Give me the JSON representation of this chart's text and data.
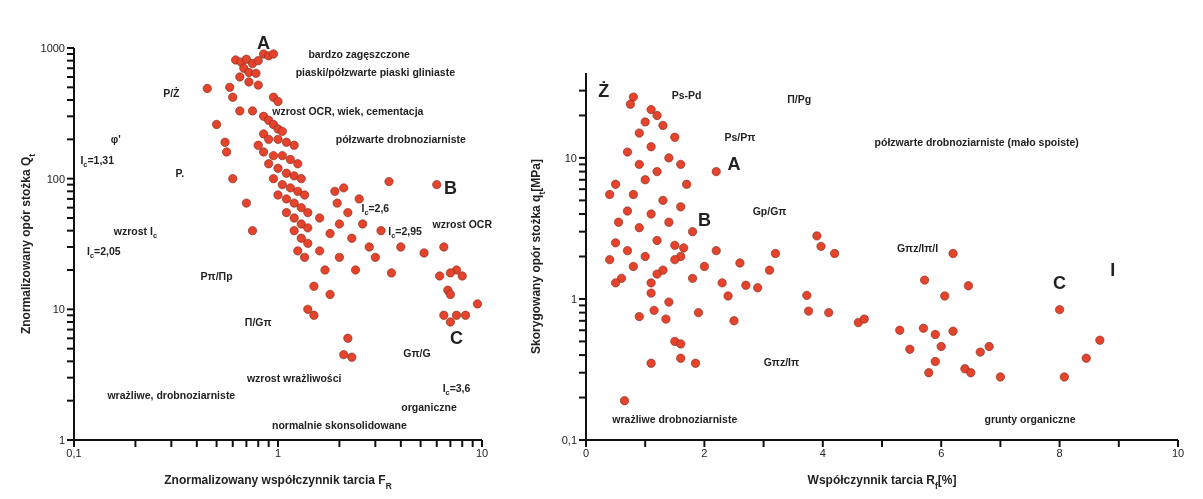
{
  "chart_data": [
    {
      "type": "scatter",
      "xlabel": "Znormalizowany współczynnik tarcia F$_{R}$",
      "ylabel": "Znormalizowany opór stożka Q$_{t}$",
      "log": "xy",
      "marker": "circle",
      "xlim": [
        0.1,
        10
      ],
      "ylim": [
        1,
        1000
      ],
      "xticks": [
        {
          "value": 0.1,
          "label": "0,1"
        },
        {
          "value": 0.2,
          "label": null
        },
        {
          "value": 0.3,
          "label": null
        },
        {
          "value": 0.4,
          "label": null
        },
        {
          "value": 0.5,
          "label": null
        },
        {
          "value": 0.6,
          "label": null
        },
        {
          "value": 0.7,
          "label": null
        },
        {
          "value": 0.8,
          "label": null
        },
        {
          "value": 0.9,
          "label": null
        },
        1,
        {
          "value": 2,
          "label": null
        },
        {
          "value": 3,
          "label": null
        },
        {
          "value": 4,
          "label": null
        },
        {
          "value": 5,
          "label": null
        },
        {
          "value": 6,
          "label": null
        },
        {
          "value": 7,
          "label": null
        },
        {
          "value": 8,
          "label": null
        },
        {
          "value": 9,
          "label": null
        },
        10
      ],
      "yticks": [
        1,
        {
          "value": 2,
          "label": null
        },
        {
          "value": 3,
          "label": null
        },
        {
          "value": 4,
          "label": null
        },
        {
          "value": 5,
          "label": null
        },
        {
          "value": 6,
          "label": null
        },
        {
          "value": 7,
          "label": null
        },
        {
          "value": 8,
          "label": null
        },
        {
          "value": 9,
          "label": null
        },
        10,
        {
          "value": 20,
          "label": null
        },
        {
          "value": 30,
          "label": null
        },
        {
          "value": 40,
          "label": null
        },
        {
          "value": 50,
          "label": null
        },
        {
          "value": 60,
          "label": null
        },
        {
          "value": 70,
          "label": null
        },
        {
          "value": 80,
          "label": null
        },
        {
          "value": 90,
          "label": null
        },
        100,
        {
          "value": 200,
          "label": null
        },
        {
          "value": 300,
          "label": null
        },
        {
          "value": 400,
          "label": null
        },
        {
          "value": 500,
          "label": null
        },
        {
          "value": 600,
          "label": null
        },
        {
          "value": 700,
          "label": null
        },
        {
          "value": 800,
          "label": null
        },
        {
          "value": 900,
          "label": null
        },
        1000
      ],
      "series": [
        {
          "color": "#e5432b",
          "x": [
            0.62,
            0.66,
            0.7,
            0.75,
            0.8,
            0.85,
            0.9,
            0.95,
            0.68,
            0.72,
            0.78,
            0.65,
            0.58,
            0.72,
            0.8,
            0.95,
            1.0,
            0.45,
            0.6,
            0.65,
            0.5,
            0.75,
            0.85,
            0.9,
            0.95,
            1.0,
            1.05,
            0.85,
            0.9,
            1.0,
            1.1,
            1.2,
            0.8,
            0.85,
            0.95,
            1.05,
            1.15,
            1.25,
            0.9,
            1.0,
            1.1,
            1.2,
            1.3,
            0.95,
            1.05,
            1.15,
            1.25,
            1.35,
            1.0,
            1.1,
            1.2,
            1.3,
            1.4,
            1.1,
            1.2,
            1.3,
            1.4,
            1.2,
            1.3,
            1.4,
            1.25,
            1.35,
            0.55,
            0.56,
            0.6,
            0.7,
            0.75,
            1.9,
            2.1,
            1.95,
            2.2,
            2.5,
            3.5,
            6.0,
            1.6,
            2.0,
            2.6,
            3.2,
            1.8,
            2.3,
            2.8,
            4.0,
            1.6,
            2.0,
            3.0,
            1.7,
            2.4,
            3.6,
            1.5,
            1.8,
            1.4,
            1.5,
            5.2,
            6.5,
            7.5,
            8.0,
            6.2,
            7.0,
            6.8,
            7.0,
            6.5,
            7.5,
            8.3,
            7.0,
            9.5,
            2.2,
            2.1,
            2.3
          ],
          "values": [
            810,
            780,
            820,
            760,
            800,
            900,
            870,
            900,
            700,
            650,
            640,
            600,
            500,
            550,
            520,
            420,
            390,
            490,
            420,
            330,
            260,
            330,
            300,
            280,
            260,
            240,
            230,
            220,
            200,
            200,
            190,
            180,
            180,
            160,
            150,
            150,
            140,
            130,
            130,
            120,
            110,
            105,
            100,
            100,
            90,
            85,
            80,
            75,
            75,
            70,
            65,
            60,
            55,
            55,
            50,
            45,
            42,
            40,
            35,
            32,
            28,
            25,
            190,
            160,
            100,
            65,
            40,
            80,
            85,
            65,
            55,
            70,
            95,
            90,
            50,
            45,
            45,
            40,
            38,
            35,
            30,
            30,
            28,
            25,
            25,
            20,
            20,
            19,
            15,
            13,
            10,
            9,
            27,
            30,
            20,
            18,
            18,
            19,
            14,
            13,
            9,
            9,
            9,
            8,
            11,
            6,
            4.5,
            4.3
          ]
        }
      ],
      "annotations": [
        "A",
        "B",
        "C",
        "P/Ż",
        "P.",
        "Pπ/Πp",
        "Π/Gπ",
        "Gπ/G",
        "wrażliwe, drobnoziarniste",
        "organiczne",
        "normalnie skonsolidowane",
        "bardzo zagęszczone",
        "piaski/półzwarte piaski gliniaste",
        "półzwarte drobnoziarniste",
        "wzrost OCR, wiek, cementacja",
        "wzrost OCR",
        "wzrost wrażliwości",
        "wzrost I$_{c}$",
        "φ'",
        "I$_{c}$=1,31",
        "I$_{c}$=2,05",
        "I$_{c}$=2,6",
        "I$_{c}$=2,95",
        "I$_{c}$=3,6"
      ]
    },
    {
      "type": "scatter",
      "xlabel": "Współczynnik tarcia R$_{f}$[%]",
      "ylabel": "Skorygowany opór stożka q$_{t}$[MPa]",
      "log": "y",
      "marker": "circle",
      "xlim": [
        0,
        10
      ],
      "ylim": [
        0.1,
        40
      ],
      "xticks": [
        0,
        {
          "value": 1,
          "label": null
        },
        2,
        {
          "value": 3,
          "label": null
        },
        4,
        {
          "value": 5,
          "label": null
        },
        6,
        {
          "value": 7,
          "label": null
        },
        8,
        {
          "value": 9,
          "label": null
        },
        10
      ],
      "yticks": [
        {
          "value": 0.1,
          "label": "0,1"
        },
        {
          "value": 0.2,
          "label": null
        },
        {
          "value": 0.3,
          "label": null
        },
        {
          "value": 0.4,
          "label": null
        },
        {
          "value": 0.5,
          "label": null
        },
        {
          "value": 0.6,
          "label": null
        },
        {
          "value": 0.7,
          "label": null
        },
        {
          "value": 0.8,
          "label": null
        },
        {
          "value": 0.9,
          "label": null
        },
        1,
        {
          "value": 2,
          "label": null
        },
        {
          "value": 3,
          "label": null
        },
        {
          "value": 4,
          "label": null
        },
        {
          "value": 5,
          "label": null
        },
        {
          "value": 6,
          "label": null
        },
        {
          "value": 7,
          "label": null
        },
        {
          "value": 8,
          "label": null
        },
        {
          "value": 9,
          "label": null
        },
        10,
        {
          "value": 20,
          "label": null
        },
        {
          "value": 30,
          "label": null
        }
      ],
      "series": [
        {
          "color": "#e5432b",
          "x": [
            0.8,
            0.75,
            1.1,
            1.2,
            1.0,
            1.3,
            0.9,
            1.5,
            1.1,
            0.7,
            1.4,
            1.6,
            2.2,
            0.9,
            1.2,
            0.5,
            0.4,
            1.0,
            1.7,
            0.8,
            1.3,
            1.6,
            0.7,
            1.1,
            0.55,
            1.4,
            0.9,
            1.8,
            0.5,
            1.2,
            1.5,
            0.7,
            1.0,
            1.6,
            0.4,
            0.8,
            1.3,
            0.6,
            1.1,
            0.5,
            1.65,
            2.2,
            3.2,
            3.9,
            1.5,
            2.0,
            2.6,
            3.1,
            1.2,
            1.8,
            2.3,
            2.7,
            2.9,
            1.1,
            2.4,
            1.4,
            1.9,
            1.15,
            1.35,
            0.9,
            2.5,
            1.5,
            1.6,
            1.6,
            1.1,
            1.85,
            0.65,
            3.97,
            4.2,
            6.2,
            3.73,
            3.76,
            4.1,
            4.6,
            4.7,
            5.3,
            5.47,
            5.7,
            5.72,
            5.9,
            5.9,
            6.0,
            5.79,
            6.06,
            6.2,
            6.46,
            6.4,
            6.5,
            6.66,
            6.81,
            7.0,
            8.0,
            8.08,
            8.45,
            8.68
          ],
          "values": [
            27,
            24,
            22,
            20,
            18,
            17,
            15,
            14,
            12,
            11,
            10,
            9,
            8.0,
            9,
            8,
            6.5,
            5.5,
            7,
            6.5,
            5.5,
            5,
            4.5,
            4.2,
            4,
            3.5,
            3.5,
            3.2,
            3,
            2.5,
            2.6,
            2.4,
            2.2,
            2.0,
            2.0,
            1.9,
            1.7,
            1.6,
            1.4,
            1.3,
            1.3,
            2.3,
            2.2,
            2.1,
            2.8,
            1.9,
            1.7,
            1.8,
            1.6,
            1.5,
            1.4,
            1.3,
            1.25,
            1.2,
            1.1,
            1.05,
            0.95,
            0.8,
            0.83,
            0.72,
            0.75,
            0.7,
            0.5,
            0.48,
            0.38,
            0.35,
            0.35,
            0.19,
            2.36,
            2.1,
            2.1,
            1.06,
            0.82,
            0.8,
            0.68,
            0.72,
            0.6,
            0.44,
            0.62,
            1.36,
            0.56,
            0.36,
            0.46,
            0.3,
            1.05,
            0.59,
            1.24,
            0.32,
            0.3,
            0.42,
            0.46,
            0.28,
            0.84,
            0.28,
            0.38,
            0.51
          ]
        }
      ],
      "annotations": [
        "A",
        "B",
        "C",
        "Ż",
        "Ps-Pd",
        "Ps/Pπ",
        "Π/Pg",
        "półzwarte drobnoziarniste (mało spoiste)",
        "Gp/Gπ",
        "Gπz/Iπ/I",
        "I",
        "Gπz/Iπ",
        "wrażliwe drobnoziarniste",
        "grunty organiczne"
      ]
    }
  ]
}
